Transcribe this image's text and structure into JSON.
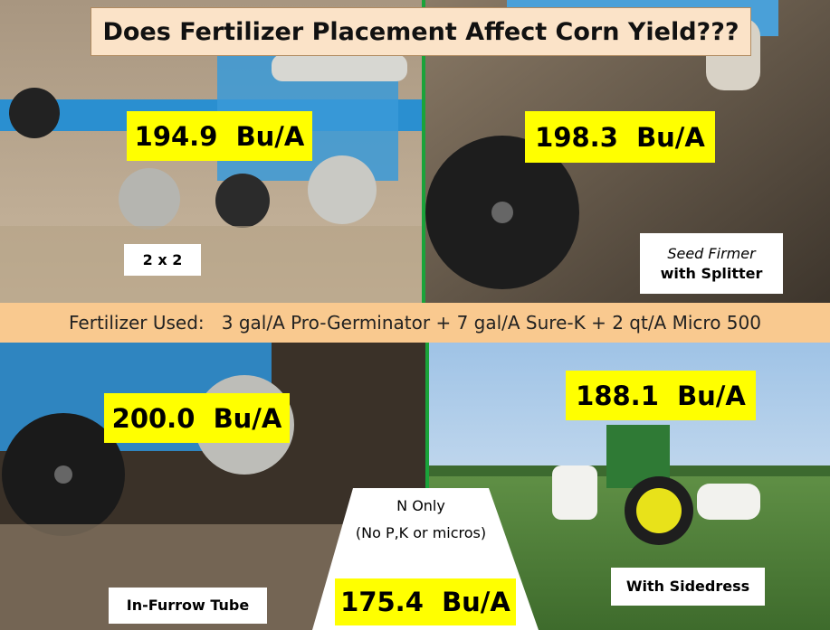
{
  "title": "Does Fertilizer Placement Affect Corn Yield???",
  "fertilizer_used": {
    "label": "Fertilizer Used:",
    "text": "3 gal/A Pro-Germinator + 7 gal/A Sure-K + 2 qt/A Micro 500"
  },
  "panels": [
    {
      "yield": "194.9  Bu/A",
      "caption": "2 x 2"
    },
    {
      "yield": "198.3  Bu/A",
      "caption_lines": [
        "Seed Firmer",
        "with Splitter"
      ]
    },
    {
      "yield": "200.0  Bu/A",
      "caption": "In-Furrow Tube"
    },
    {
      "yield": "188.1  Bu/A",
      "caption": "With Sidedress"
    }
  ],
  "center": {
    "lines": [
      "N Only",
      "(No P,K or micros)"
    ],
    "yield": "175.4  Bu/A"
  }
}
